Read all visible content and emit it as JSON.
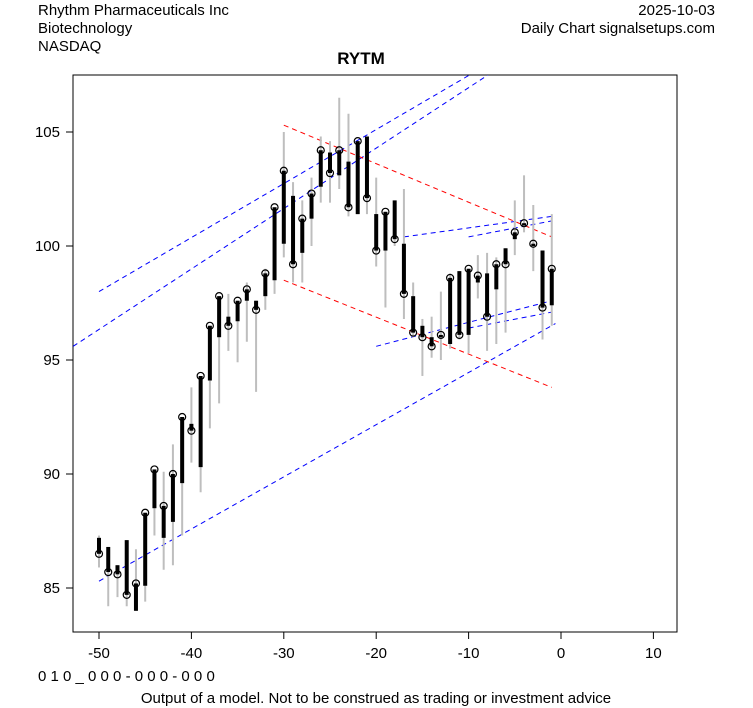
{
  "header": {
    "company": "Rhythm Pharmaceuticals Inc",
    "sector": "Biotechnology",
    "exchange": "NASDAQ",
    "date": "2025-10-03",
    "source": "Daily Chart signalsetups.com"
  },
  "footer": {
    "code": "0 1 0 _ 0 0 0 - 0 0 0 - 0 0 0",
    "disclaimer": "Output of a model. Not to be construed as trading or investment advice"
  },
  "chart_data": {
    "type": "candlestick",
    "title": "RYTM",
    "xlabel": "",
    "ylabel": "",
    "xlim": [
      -52.8,
      12.5
    ],
    "ylim": [
      83.5,
      107.5
    ],
    "xticks": [
      -50,
      -40,
      -30,
      -20,
      -10,
      0,
      10
    ],
    "yticks": [
      85,
      90,
      95,
      100,
      105
    ],
    "colors": {
      "body": "#000000",
      "wick": "#bebebe",
      "channel": "#0000ff",
      "wedge": "#ff0000"
    },
    "bars_fields": [
      "x",
      "open",
      "high",
      "low",
      "close"
    ],
    "bars": [
      [
        -50,
        87.2,
        87.3,
        85.9,
        86.5
      ],
      [
        -49,
        86.8,
        86.8,
        84.2,
        85.7
      ],
      [
        -48,
        86.0,
        86.0,
        84.6,
        85.6
      ],
      [
        -47,
        87.1,
        87.1,
        84.2,
        84.7
      ],
      [
        -46,
        84.0,
        86.7,
        84.0,
        85.2
      ],
      [
        -45,
        85.1,
        88.3,
        84.4,
        88.3
      ],
      [
        -44,
        88.5,
        90.2,
        87.3,
        90.2
      ],
      [
        -43,
        87.2,
        90.1,
        85.8,
        88.6
      ],
      [
        -42,
        87.9,
        91.3,
        86.0,
        90.0
      ],
      [
        -41,
        89.6,
        92.5,
        87.3,
        92.5
      ],
      [
        -40,
        92.2,
        93.8,
        90.5,
        91.9
      ],
      [
        -39,
        90.3,
        94.3,
        89.2,
        94.3
      ],
      [
        -38,
        94.1,
        96.5,
        92.0,
        96.5
      ],
      [
        -37,
        96.0,
        97.8,
        93.1,
        97.8
      ],
      [
        -36,
        96.9,
        97.9,
        95.4,
        96.5
      ],
      [
        -35,
        96.7,
        97.6,
        94.9,
        97.6
      ],
      [
        -34,
        97.6,
        98.4,
        95.8,
        98.1
      ],
      [
        -33,
        97.6,
        97.6,
        93.6,
        97.2
      ],
      [
        -32,
        97.8,
        99.0,
        97.2,
        98.8
      ],
      [
        -31,
        98.5,
        101.7,
        97.9,
        101.7
      ],
      [
        -30,
        100.1,
        105.0,
        99.5,
        103.3
      ],
      [
        -29,
        102.2,
        102.8,
        98.4,
        99.2
      ],
      [
        -28,
        99.7,
        102.0,
        98.4,
        101.2
      ],
      [
        -27,
        101.2,
        103.0,
        100.0,
        102.3
      ],
      [
        -26,
        102.6,
        104.8,
        101.9,
        104.2
      ],
      [
        -25,
        104.1,
        104.6,
        101.9,
        103.2
      ],
      [
        -24,
        103.1,
        106.5,
        102.5,
        104.2
      ],
      [
        -23,
        103.7,
        105.8,
        101.3,
        101.7
      ],
      [
        -22,
        101.4,
        104.6,
        101.4,
        104.6
      ],
      [
        -21,
        104.8,
        104.8,
        101.4,
        102.1
      ],
      [
        -20,
        101.4,
        103.0,
        99.1,
        99.8
      ],
      [
        -19,
        99.8,
        101.5,
        97.3,
        101.5
      ],
      [
        -18,
        102.0,
        102.0,
        100.0,
        100.3
      ],
      [
        -17,
        100.1,
        102.5,
        96.8,
        97.9
      ],
      [
        -16,
        97.8,
        98.4,
        96.0,
        96.2
      ],
      [
        -15,
        96.5,
        96.8,
        94.3,
        96.0
      ],
      [
        -14,
        96.0,
        96.9,
        95.1,
        95.6
      ],
      [
        -13,
        96.0,
        98.0,
        95.0,
        96.1
      ],
      [
        -12,
        95.7,
        98.8,
        95.5,
        98.6
      ],
      [
        -11,
        98.9,
        98.9,
        95.9,
        96.1
      ],
      [
        -10,
        96.1,
        99.0,
        95.3,
        99.0
      ],
      [
        -9,
        98.4,
        99.6,
        97.7,
        98.7
      ],
      [
        -8,
        98.8,
        99.7,
        95.4,
        96.9
      ],
      [
        -7,
        98.1,
        99.5,
        95.7,
        99.2
      ],
      [
        -6,
        99.9,
        99.9,
        96.2,
        99.2
      ],
      [
        -5,
        100.3,
        102.0,
        99.6,
        100.6
      ],
      [
        -4,
        100.9,
        103.1,
        100.6,
        101.0
      ],
      [
        -3,
        100.0,
        101.8,
        98.9,
        100.1
      ],
      [
        -2,
        99.8,
        99.8,
        95.9,
        97.3
      ],
      [
        -1,
        97.4,
        101.4,
        96.5,
        99.0
      ]
    ],
    "lines": [
      {
        "color": "channel",
        "from": [
          -50,
          98.0
        ],
        "to": [
          -9.9,
          107.5
        ]
      },
      {
        "color": "channel",
        "from": [
          -52.8,
          95.6
        ],
        "to": [
          -7.9,
          107.5
        ]
      },
      {
        "color": "channel",
        "from": [
          -50,
          85.3
        ],
        "to": [
          -0.6,
          96.6
        ]
      },
      {
        "color": "wedge",
        "from": [
          -30,
          105.3
        ],
        "to": [
          -1,
          100.4
        ]
      },
      {
        "color": "wedge",
        "from": [
          -30,
          98.5
        ],
        "to": [
          -1,
          93.8
        ]
      },
      {
        "color": "channel",
        "from": [
          -17,
          100.4
        ],
        "to": [
          -1,
          101.3
        ]
      },
      {
        "color": "channel",
        "from": [
          -10,
          100.4
        ],
        "to": [
          -1,
          101.1
        ]
      },
      {
        "color": "channel",
        "from": [
          -20,
          95.6
        ],
        "to": [
          -1,
          97.6
        ]
      },
      {
        "color": "channel",
        "from": [
          -10,
          96.4
        ],
        "to": [
          -1,
          97.1
        ]
      }
    ]
  }
}
